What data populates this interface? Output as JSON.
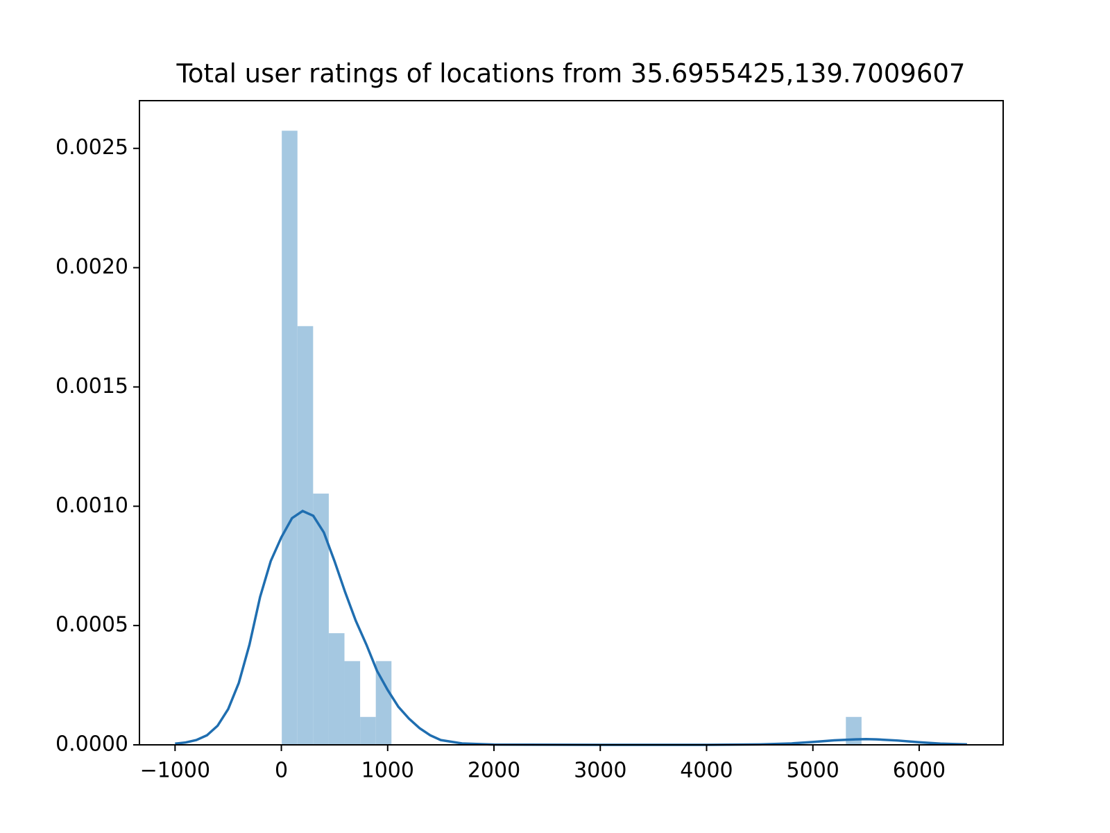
{
  "chart_data": {
    "type": "histogram",
    "title": "Total user ratings of locations from 35.6955425,139.7009607",
    "bins": [
      4,
      151.4,
      298.8,
      446.2,
      593.6,
      741,
      888.4,
      1035.8,
      1183.2,
      1330.6,
      1478,
      1625.4,
      1772.8,
      1920.2,
      2067.6,
      2215,
      2362.4,
      2509.8,
      2657.2,
      2804.6,
      2952,
      3099.4,
      3246.8,
      3394.2,
      3541.6,
      3689,
      3836.4,
      3983.8,
      4131.2,
      4278.6,
      4426,
      4573.4,
      4720.8,
      4868.2,
      5015.6,
      5163,
      5310.4,
      5457.8
    ],
    "values": [
      0.002574,
      0.001755,
      0.001053,
      0.000468,
      0.000351,
      0.000117,
      0.000351,
      0,
      0,
      0,
      0,
      0,
      0,
      0,
      0,
      0,
      0,
      0,
      0,
      0,
      0,
      0,
      0,
      0,
      0,
      0,
      0,
      0,
      0,
      0,
      0,
      0,
      0,
      0,
      0,
      0,
      0.000117
    ],
    "color": "#a5c8e1",
    "kde": {
      "color": "#1f6eb0",
      "x": [
        -1000,
        -900,
        -800,
        -700,
        -600,
        -500,
        -400,
        -300,
        -200,
        -100,
        0,
        100,
        200,
        300,
        400,
        500,
        600,
        700,
        800,
        900,
        1000,
        1100,
        1200,
        1300,
        1400,
        1500,
        1700,
        2000,
        3000,
        4000,
        4500,
        4800,
        5000,
        5200,
        5400,
        5500,
        5600,
        5800,
        6000,
        6200,
        6450
      ],
      "values": [
        5e-06,
        1e-05,
        2e-05,
        4e-05,
        8e-05,
        0.00015,
        0.00026,
        0.00042,
        0.00062,
        0.00077,
        0.00087,
        0.00095,
        0.00098,
        0.00096,
        0.00089,
        0.00077,
        0.00064,
        0.00052,
        0.00042,
        0.00031,
        0.00023,
        0.00016,
        0.00011,
        7e-05,
        4e-05,
        2e-05,
        6e-06,
        1e-06,
        0,
        0,
        2e-06,
        6e-06,
        1.2e-05,
        1.9e-05,
        2.3e-05,
        2.4e-05,
        2.3e-05,
        1.8e-05,
        1.1e-05,
        5e-06,
        2e-06
      ]
    },
    "xlim": [
      -1335,
      6790
    ],
    "ylim": [
      0,
      0.0027
    ],
    "xticks": [
      {
        "value": -1000,
        "label": "−1000"
      },
      0,
      1000,
      2000,
      3000,
      4000,
      5000,
      6000
    ],
    "yticks": [
      {
        "value": 0,
        "label": "0.0000"
      },
      {
        "value": 0.0005,
        "label": "0.0005"
      },
      {
        "value": 0.001,
        "label": "0.0010"
      },
      {
        "value": 0.0015,
        "label": "0.0015"
      },
      {
        "value": 0.002,
        "label": "0.0020"
      },
      {
        "value": 0.0025,
        "label": "0.0025"
      }
    ]
  }
}
